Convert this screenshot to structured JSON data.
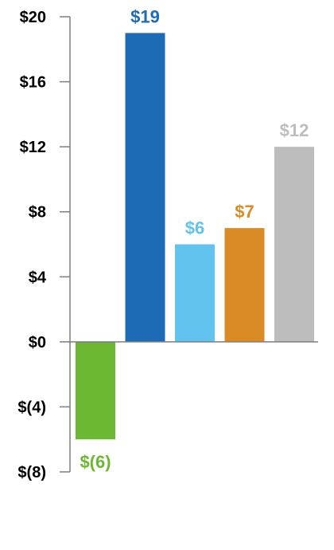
{
  "chart_data": {
    "type": "bar",
    "categories": [
      "",
      "",
      "",
      "",
      ""
    ],
    "values": [
      -6,
      19,
      6,
      7,
      12
    ],
    "data_labels": [
      "$(6)",
      "$19",
      "$6",
      "$7",
      "$12"
    ],
    "colors": [
      "#6cb833",
      "#1e6bb5",
      "#62c3ef",
      "#d98b26",
      "#bdbdbd"
    ],
    "ylim": [
      -8,
      20
    ],
    "yticks": [
      {
        "value": 20,
        "label": "$20"
      },
      {
        "value": 16,
        "label": "$16"
      },
      {
        "value": 12,
        "label": "$12"
      },
      {
        "value": 8,
        "label": "$8"
      },
      {
        "value": 4,
        "label": "$4"
      },
      {
        "value": 0,
        "label": "$0"
      },
      {
        "value": -4,
        "label": "$(4)"
      },
      {
        "value": -8,
        "label": "$(8)"
      }
    ],
    "axis_color": "#7f7f7f",
    "grid": false,
    "legend": "none",
    "title": "",
    "xlabel": "",
    "ylabel": ""
  }
}
